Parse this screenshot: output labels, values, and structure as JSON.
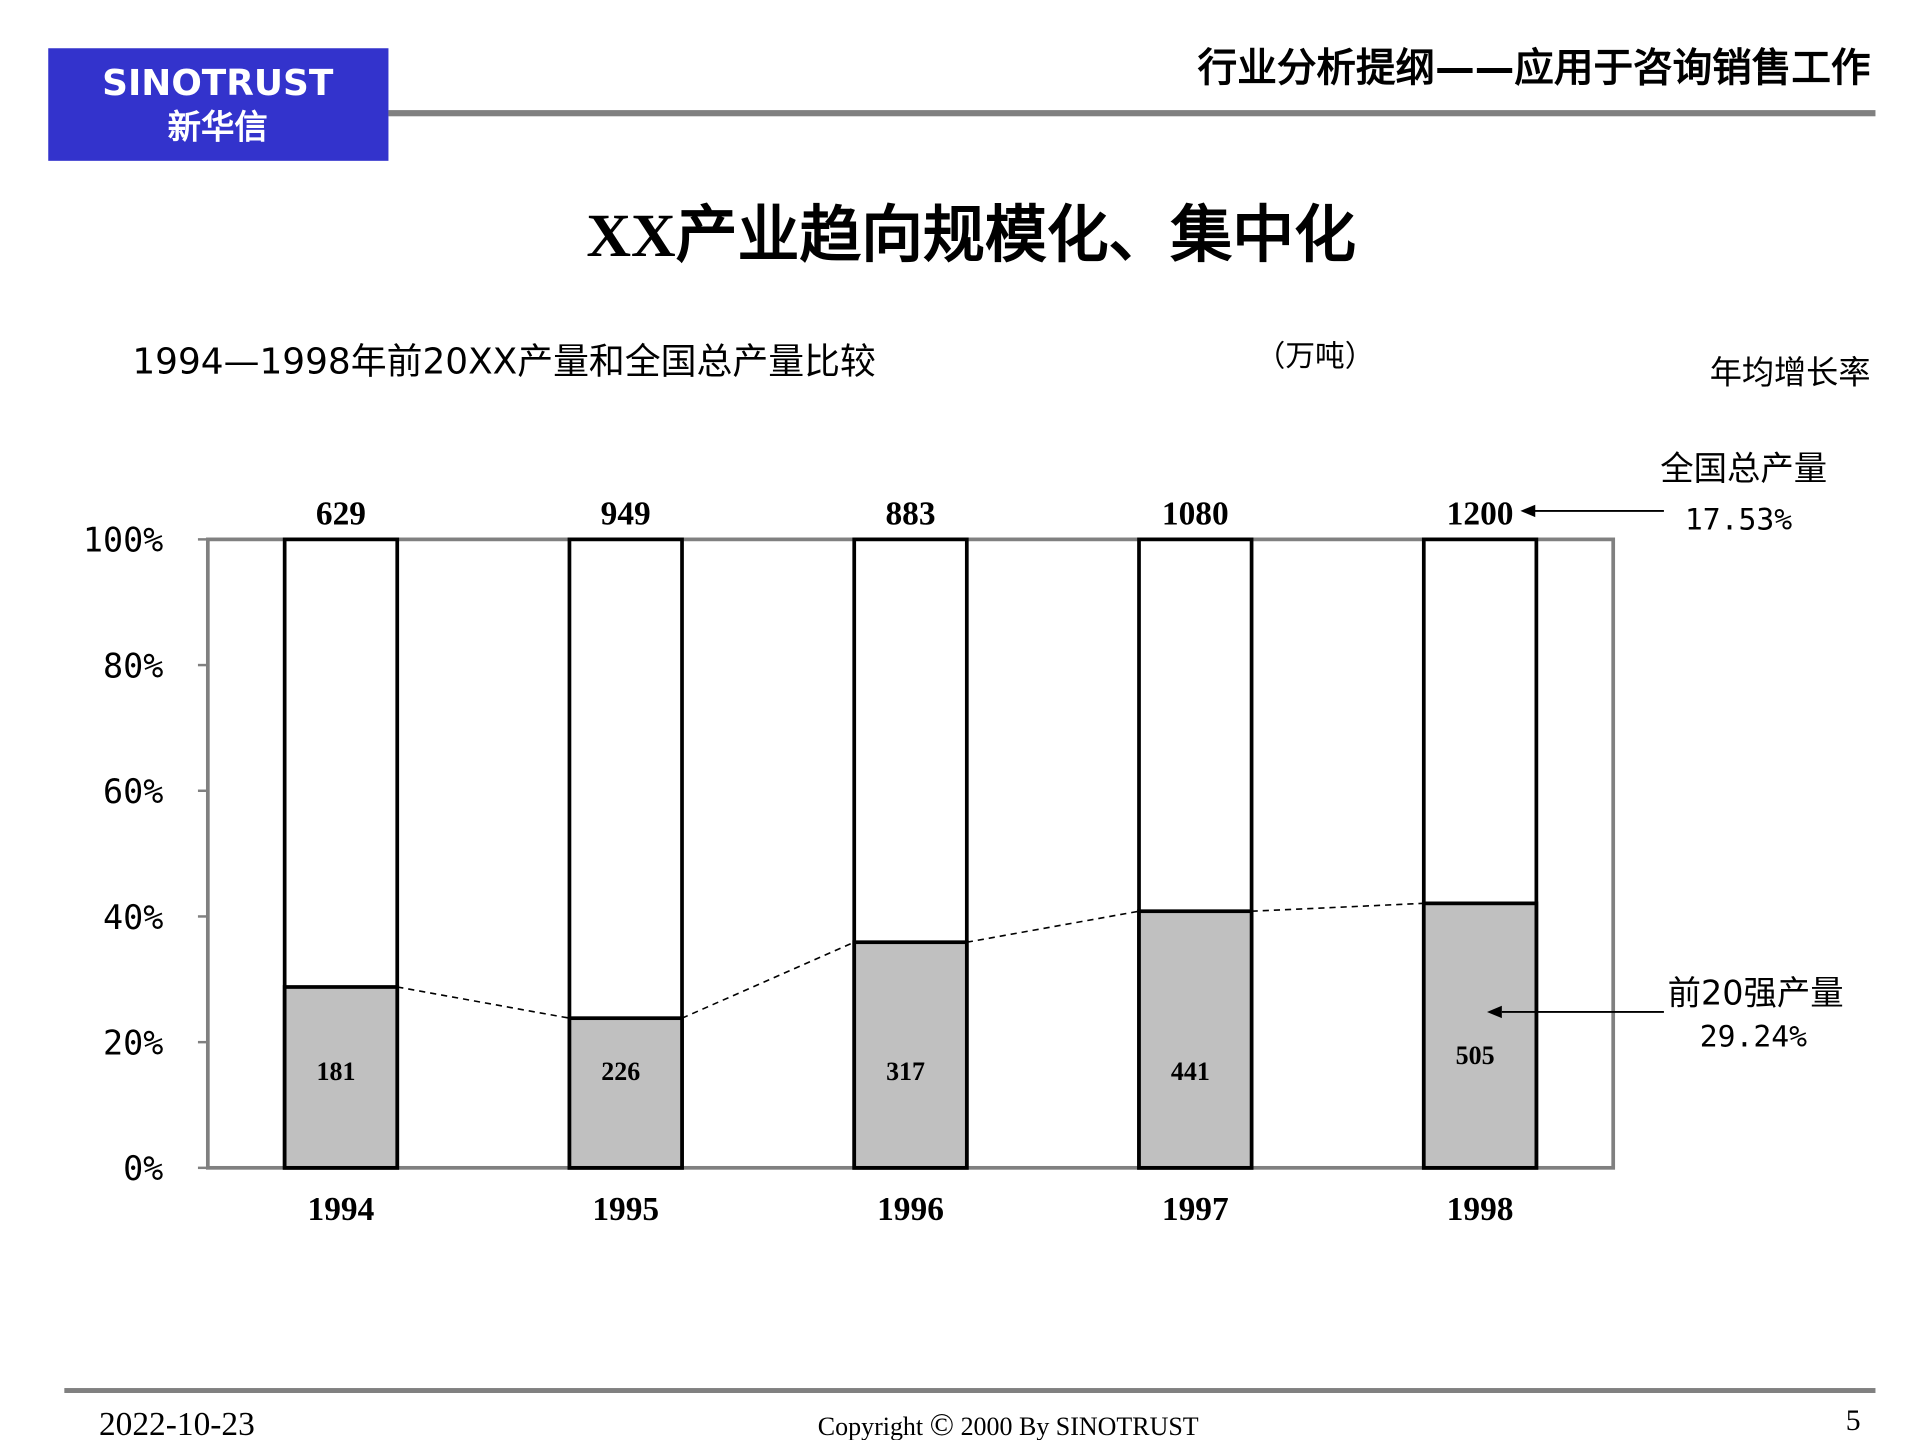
{
  "logo": {
    "text_en": "SINOTRUST",
    "text_cn": "新华信",
    "color": "#3333cc"
  },
  "header": {
    "title": "行业分析提纲——应用于咨询销售工作"
  },
  "slide": {
    "title": "XX产业趋向规模化、集中化"
  },
  "chart_data": {
    "type": "bar",
    "stacked_percent": true,
    "title": "1994—1998年前20XX产量和全国总产量比较",
    "unit": "（万吨）",
    "categories": [
      "1994",
      "1995",
      "1996",
      "1997",
      "1998"
    ],
    "totals": [
      629,
      949,
      883,
      1080,
      1200
    ],
    "series": [
      {
        "values": [
          181,
          226,
          317,
          441,
          505
        ],
        "color": "#c0c0c0"
      }
    ],
    "yticks": [
      "0%",
      "20%",
      "40%",
      "60%",
      "80%",
      "100%"
    ],
    "ylim": [
      0,
      100
    ],
    "growth_header": "年均增长率",
    "annotations": [
      {
        "label": "全国总产量",
        "value": "17.53%"
      },
      {
        "label": "前20强产量",
        "value": "29.24%"
      }
    ]
  },
  "footer": {
    "date": "2022-10-23",
    "copyright_pre": "Copyright",
    "copyright_symbol": "©",
    "copyright_post": "2000 By SINOTRUST",
    "page": "5"
  }
}
